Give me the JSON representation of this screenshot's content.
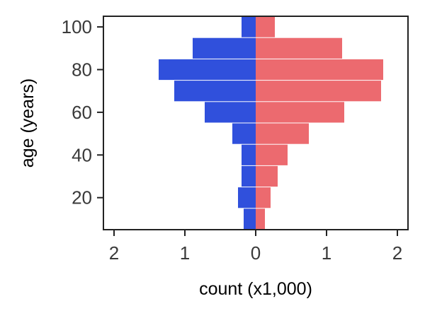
{
  "chart_data": {
    "type": "bar",
    "orientation": "horizontal",
    "xlabel": "count (x1,000)",
    "ylabel": "age (years)",
    "xlim": [
      -2.15,
      2.15
    ],
    "ylim": [
      5,
      105
    ],
    "x_ticks": [
      -2,
      -1,
      0,
      1,
      2
    ],
    "x_tick_labels": [
      "2",
      "1",
      "0",
      "1",
      "2"
    ],
    "y_ticks": [
      20,
      40,
      60,
      80,
      100
    ],
    "y_tick_labels": [
      "20",
      "40",
      "60",
      "80",
      "100"
    ],
    "grid": false,
    "legend": "none",
    "bin_width": 10,
    "categories": [
      10,
      20,
      30,
      40,
      50,
      60,
      70,
      80,
      90,
      100
    ],
    "series": [
      {
        "color": "#3050dc",
        "side": "left",
        "values": [
          0.17,
          0.25,
          0.2,
          0.2,
          0.33,
          0.72,
          1.15,
          1.37,
          0.89,
          0.2
        ]
      },
      {
        "color": "#ec6a6f",
        "side": "right",
        "values": [
          0.13,
          0.21,
          0.31,
          0.45,
          0.75,
          1.25,
          1.77,
          1.8,
          1.22,
          0.27
        ]
      }
    ]
  }
}
